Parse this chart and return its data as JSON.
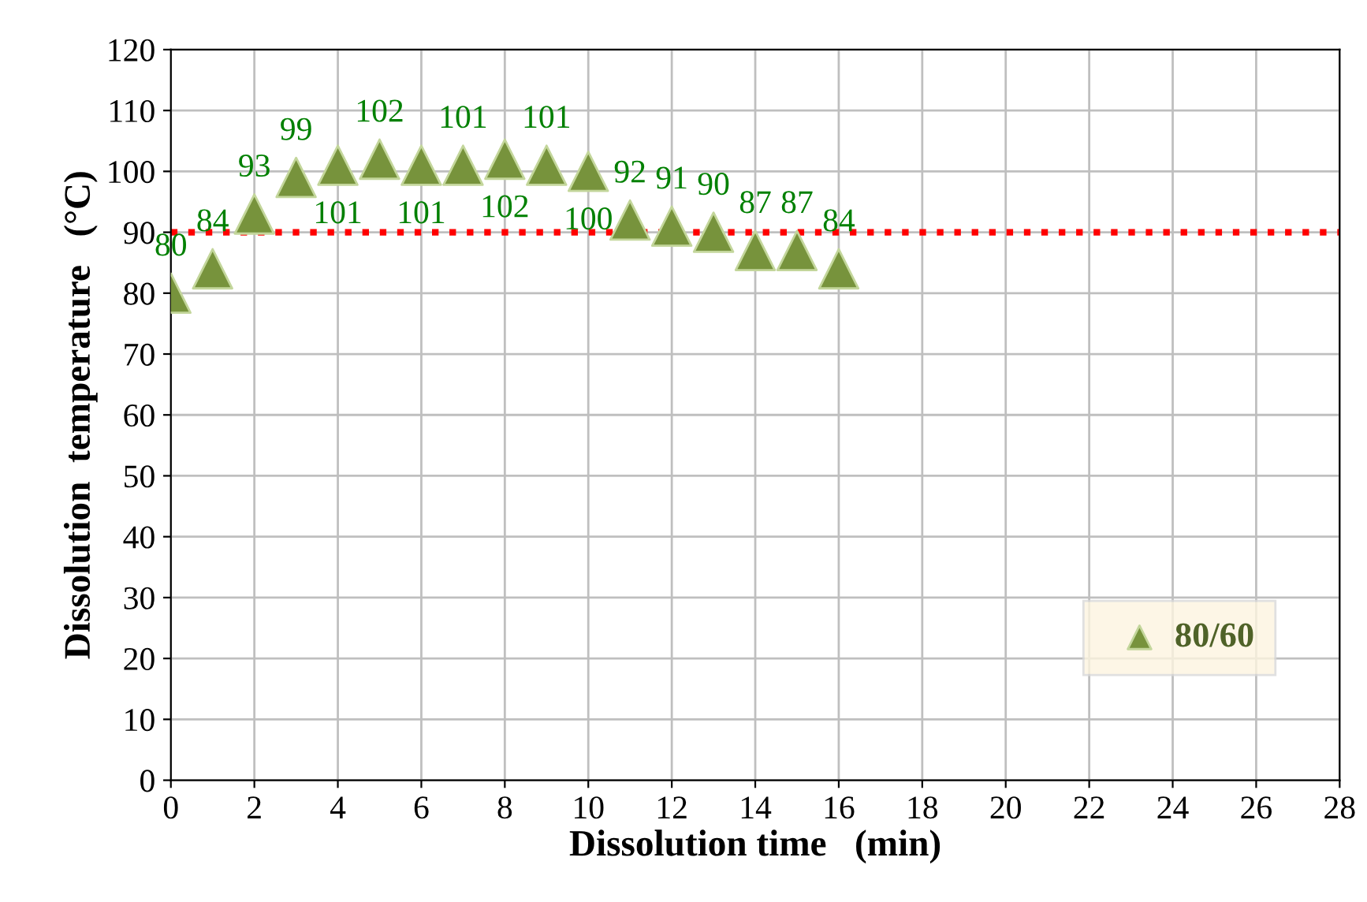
{
  "chart_data": {
    "type": "scatter",
    "xlabel": "Dissolution time   (min)",
    "ylabel": "Dissolution  temperature   (°C)",
    "x": [
      0,
      1,
      2,
      3,
      4,
      5,
      6,
      7,
      8,
      9,
      10,
      11,
      12,
      13,
      14,
      15,
      16
    ],
    "series": [
      {
        "name": "80/60",
        "color": "#77933c",
        "values": [
          80,
          84,
          93,
          99,
          101,
          102,
          101,
          101,
          102,
          101,
          100,
          92,
          91,
          90,
          87,
          87,
          84
        ]
      }
    ],
    "marker": "triangle",
    "data_labels": true,
    "xlim": [
      0,
      28
    ],
    "xticks": [
      0,
      2,
      4,
      6,
      8,
      10,
      12,
      14,
      16,
      18,
      20,
      22,
      24,
      26,
      28
    ],
    "ylim": [
      0,
      120
    ],
    "yticks": [
      0,
      10,
      20,
      30,
      40,
      50,
      60,
      70,
      80,
      90,
      100,
      110,
      120
    ],
    "ref_lines": [
      {
        "axis": "y",
        "value": 90,
        "color": "#ff0000",
        "line_style": "dotted"
      }
    ],
    "grid": true,
    "legend": "bottom right"
  }
}
